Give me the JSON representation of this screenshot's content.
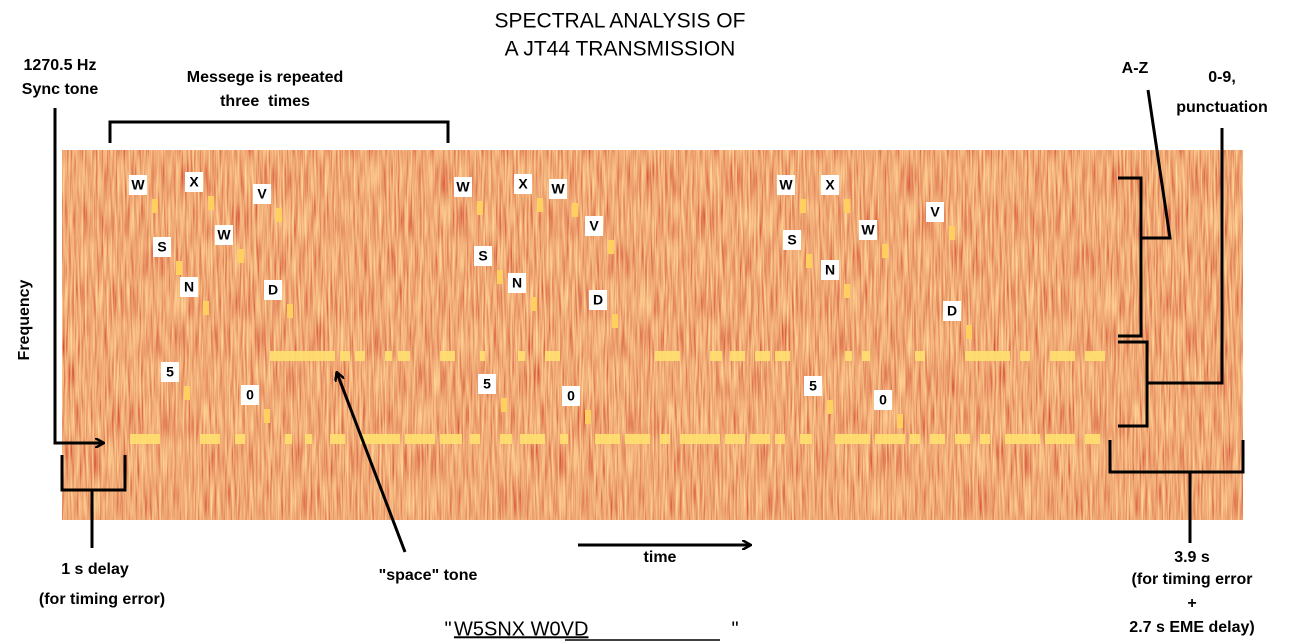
{
  "title": [
    "SPECTRAL ANALYSIS OF",
    "A JT44 TRANSMISSION"
  ],
  "sync_label": [
    "1270.5 Hz",
    "Sync tone"
  ],
  "repeat_label": [
    "Messege is repeated",
    "three  times"
  ],
  "az_label": "A-Z",
  "digits_label": [
    "0-9,",
    "punctuation"
  ],
  "y_axis_label": "Frequency",
  "x_axis_label": "time",
  "delay_label": [
    "1 s delay",
    "(for timing error)"
  ],
  "space_label": "\"space\" tone",
  "end_label": [
    "3.9 s",
    "(for timing error",
    "+",
    "2.7 s EME delay)"
  ],
  "message": {
    "open_quote": "\"",
    "text": "W5SNX W0VD",
    "close_quote": "\""
  },
  "letter_labels": [
    [
      "W",
      "X",
      "V",
      "S",
      "W",
      "N",
      "D",
      "5",
      "0"
    ],
    [
      "W",
      "X",
      "W",
      "V",
      "S",
      "N",
      "D",
      "5",
      "0"
    ],
    [
      "W",
      "X",
      "W",
      "V",
      "S",
      "N",
      "D",
      "5",
      "0"
    ]
  ]
}
